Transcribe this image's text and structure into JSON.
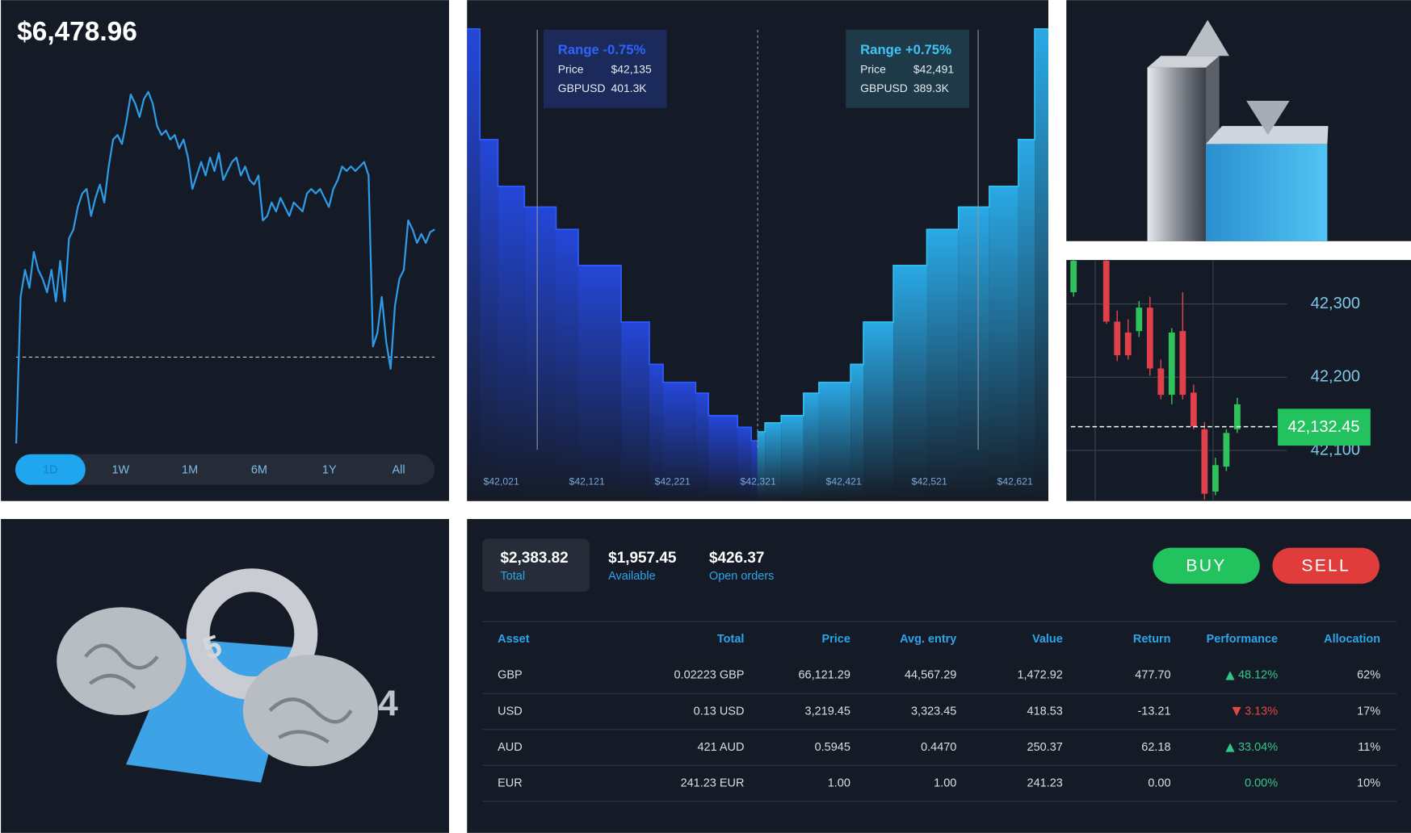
{
  "balance_panel": {
    "balance": "$6,478.96",
    "ranges": [
      "1D",
      "1W",
      "1M",
      "6M",
      "1Y",
      "All"
    ],
    "active_range": "1D"
  },
  "chart_data": [
    {
      "type": "line",
      "color": "#2e9be6",
      "ylim": [
        0,
        100
      ],
      "baseline": 25.75,
      "values": [
        1.75,
        42.5,
        50,
        45,
        55,
        50,
        47.5,
        43.75,
        50,
        41.25,
        52.5,
        41.25,
        58.75,
        61.25,
        67.5,
        71.25,
        72.5,
        65,
        70,
        73.75,
        68.75,
        78.75,
        86.25,
        87.5,
        85,
        91.25,
        98.75,
        96.25,
        92.5,
        97.5,
        99.5,
        96.25,
        90,
        87.5,
        88.75,
        86.25,
        87.5,
        83.75,
        86.25,
        81.25,
        72.5,
        76.25,
        80,
        76.25,
        81.25,
        77.5,
        82.5,
        75,
        77.5,
        80,
        81.25,
        76.25,
        78.75,
        75,
        73.75,
        76.25,
        63.75,
        65,
        68.75,
        66.25,
        70,
        67.5,
        65,
        68.75,
        67.5,
        66.25,
        71.25,
        72.5,
        71.25,
        72.5,
        70,
        67.5,
        72.5,
        75,
        78.75,
        77.5,
        78.75,
        77.5,
        78.75,
        80,
        76.25,
        28.75,
        32.5,
        42.5,
        30,
        22.5,
        40,
        47.5,
        50,
        63.75,
        61.25,
        57.5,
        60,
        57.5,
        60.5,
        61.25
      ]
    },
    {
      "type": "depth",
      "xlim": [
        41981,
        42660
      ],
      "ylim": [
        0,
        470
      ],
      "xticks": [
        {
          "value": 42021,
          "label": "$42,021"
        },
        {
          "value": 42121,
          "label": "$42,121"
        },
        {
          "value": 42221,
          "label": "$42,221"
        },
        {
          "value": 42321,
          "label": "$42,321"
        },
        {
          "value": 42421,
          "label": "$42,421"
        },
        {
          "value": 42521,
          "label": "$42,521"
        },
        {
          "value": 42621,
          "label": "$42,621"
        }
      ],
      "bids": {
        "color": "#2e5bff",
        "bins": [
          41981,
          41996,
          42017,
          42048,
          42085,
          42111,
          42161,
          42194,
          42210,
          42248,
          42263,
          42297,
          42313,
          42320
        ],
        "values": [
          468,
          345,
          293,
          270,
          245,
          205,
          142,
          95,
          75,
          63,
          38,
          25,
          10
        ]
      },
      "asks": {
        "color": "#2fc0f0",
        "bins": [
          42320,
          42329,
          42348,
          42374,
          42392,
          42429,
          42444,
          42479,
          42518,
          42555,
          42591,
          42625,
          42644,
          42660
        ],
        "values": [
          20,
          30,
          38,
          63,
          75,
          95,
          142,
          205,
          245,
          270,
          293,
          345,
          468
        ]
      },
      "annotations": [
        {
          "title": "Range -0.75%",
          "color": "#2e63ff",
          "rows": [
            [
              "Price",
              "$42,135"
            ],
            [
              "GBPUSD",
              "401.3K"
            ]
          ]
        },
        {
          "title": "Range +0.75%",
          "color": "#3fc4f5",
          "rows": [
            [
              "Price",
              "$42,491"
            ],
            [
              "GBPUSD",
              "389.3K"
            ]
          ]
        }
      ]
    },
    {
      "type": "candlestick",
      "ylim": [
        42031,
        42360
      ],
      "up_color": "#2fc15a",
      "down_color": "#e0404a",
      "yticks": [
        {
          "value": 42300,
          "label": "42,300"
        },
        {
          "value": 42200,
          "label": "42,200"
        },
        {
          "value": 42100,
          "label": "42,100"
        }
      ],
      "open": [
        42316,
        null,
        null,
        42359,
        42276,
        42261,
        42263,
        42295,
        42212,
        42176,
        42263,
        42179,
        42129,
        42044,
        42078,
        42129
      ],
      "high": [
        42360,
        null,
        null,
        42360,
        42291,
        42279,
        42304,
        42310,
        42224,
        42267,
        42316,
        42190,
        42139,
        42090,
        42129,
        42172
      ],
      "low": [
        42310,
        null,
        null,
        42273,
        42222,
        42224,
        42255,
        42202,
        42170,
        42163,
        42170,
        42129,
        42033,
        42039,
        42072,
        42124
      ],
      "close": [
        42359,
        null,
        null,
        42276,
        42230,
        42230,
        42295,
        42212,
        42176,
        42261,
        42176,
        42133,
        42041,
        42080,
        42124,
        42163
      ],
      "last_price": {
        "value": 42132.45,
        "label": "42,132.45"
      }
    }
  ],
  "illustration": {
    "glyphs": [
      "5",
      "4"
    ]
  },
  "order_panel": {
    "summary": [
      {
        "value": "$2,383.82",
        "label": "Total"
      },
      {
        "value": "$1,957.45",
        "label": "Available"
      },
      {
        "value": "$426.37",
        "label": "Open orders"
      }
    ],
    "buttons": [
      "BUY",
      "SELL"
    ]
  },
  "table": {
    "columns": [
      "Asset",
      "Total",
      "Price",
      "Avg. entry",
      "Value",
      "Return",
      "Performance",
      "Allocation"
    ],
    "rows": [
      [
        "GBP",
        "0.02223 GBP",
        "66,121.29",
        "44,567.29",
        "1,472.92",
        "477.70",
        "48.12%",
        "62%"
      ],
      [
        "USD",
        "0.13 USD",
        "3,219.45",
        "3,323.45",
        "418.53",
        "-13.21",
        "3.13%",
        "17%"
      ],
      [
        "AUD",
        "421 AUD",
        "0.5945",
        "0.4470",
        "250.37",
        "62.18",
        "33.04%",
        "11%"
      ],
      [
        "EUR",
        "241.23 EUR",
        "1.00",
        "1.00",
        "241.23",
        "0.00",
        "0.00%",
        "10%"
      ]
    ],
    "trend": [
      "up",
      "down",
      "up",
      "flat"
    ]
  }
}
